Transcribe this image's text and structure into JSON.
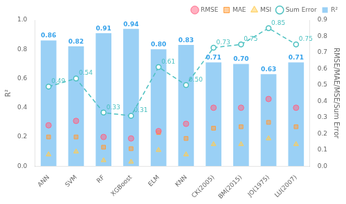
{
  "chart_data": {
    "type": "bar",
    "y_label": "R²",
    "y2_label": "RMSE/MAE/MSE/Sum Error",
    "categories": [
      "ANN",
      "SVM",
      "RF",
      "XGBoost",
      "ELM",
      "KNN",
      "CK(2005)",
      "BM(2015)",
      "JO(1975)",
      "LU(2007)"
    ],
    "series": [
      {
        "name": "R²",
        "type": "bar",
        "values": [
          0.86,
          0.82,
          0.91,
          0.94,
          0.8,
          0.83,
          0.71,
          0.7,
          0.63,
          0.71
        ],
        "value_labels": [
          "0.86",
          "0.82",
          "0.91",
          "0.94",
          "0.80",
          "0.83",
          "0.71",
          "0.70",
          "0.63",
          "0.71"
        ]
      },
      {
        "name": "RMSE",
        "type": "scatter",
        "marker": "circle",
        "values": [
          0.28,
          0.31,
          0.2,
          0.19,
          0.24,
          0.29,
          0.4,
          0.4,
          0.46,
          0.4
        ]
      },
      {
        "name": "MAE",
        "type": "scatter",
        "marker": "square",
        "values": [
          0.2,
          0.2,
          0.13,
          0.12,
          0.23,
          0.19,
          0.26,
          0.27,
          0.3,
          0.27
        ]
      },
      {
        "name": "MSI",
        "type": "scatter",
        "marker": "triangle",
        "values": [
          0.08,
          0.1,
          0.04,
          0.03,
          0.11,
          0.08,
          0.15,
          0.15,
          0.19,
          0.15
        ]
      },
      {
        "name": "Sum Error",
        "type": "line",
        "axis": "y2",
        "marker": "circle",
        "line_style": "dashed",
        "values": [
          0.49,
          0.54,
          0.33,
          0.31,
          0.61,
          0.5,
          0.73,
          0.75,
          0.85,
          0.75
        ],
        "value_labels": [
          "0.49",
          "0.54",
          "0.33",
          "0.31",
          "0.61",
          "0.50",
          "0.73",
          "0.75",
          "0.85",
          "0.75"
        ]
      }
    ],
    "ylim": [
      0.0,
      1.0
    ],
    "yticks": [
      {
        "value": 0,
        "label": "0.0"
      },
      0.2,
      0.4,
      0.6,
      0.8,
      {
        "value": 1,
        "label": "1.0"
      }
    ],
    "y2lim": [
      0.0,
      0.9
    ],
    "y2ticks": [
      {
        "value": 0,
        "label": "0.0"
      },
      0.1,
      0.2,
      0.3,
      0.4,
      0.5,
      0.6,
      0.7,
      0.8,
      0.9
    ],
    "grid": false,
    "legend": "upper right",
    "data_labels": true
  }
}
